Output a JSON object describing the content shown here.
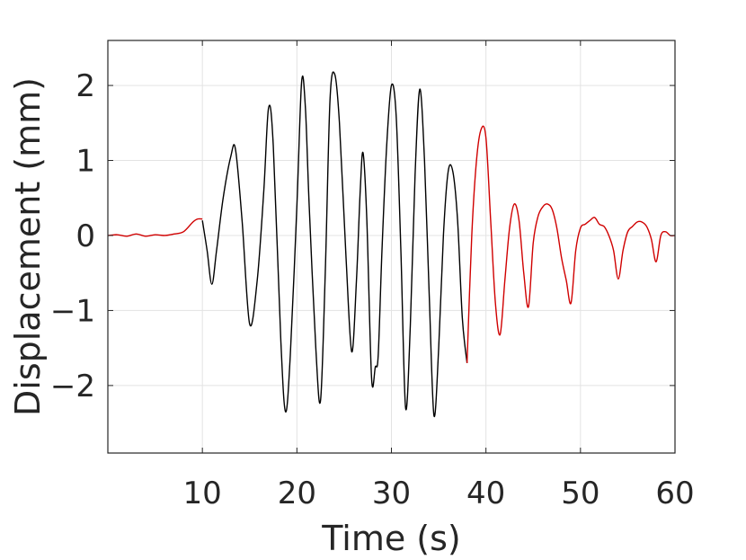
{
  "chart_data": {
    "type": "line",
    "title": "",
    "xlabel": "Time (s)",
    "ylabel": "Displacement (mm)",
    "xlim": [
      0,
      60
    ],
    "ylim": [
      -2.9,
      2.6
    ],
    "xticks": [
      10,
      20,
      30,
      40,
      50,
      60
    ],
    "xtick_labels": [
      "10",
      "20",
      "30",
      "40",
      "50",
      "60"
    ],
    "yticks": [
      -2,
      -1,
      0,
      1,
      2
    ],
    "ytick_labels": [
      "−2",
      "−1",
      "0",
      "1",
      "2"
    ],
    "grid": true,
    "legend": "none",
    "colors": {
      "segment_a": "#d00000",
      "segment_b": "#000000",
      "grid": "#e3e3e3",
      "axis": "#262626"
    },
    "series": [
      {
        "color": "#d00000",
        "x": [
          0,
          1,
          2,
          3,
          4,
          5,
          6,
          7,
          8,
          9,
          9.5,
          10
        ],
        "y": [
          0,
          0.01,
          -0.01,
          0.02,
          -0.01,
          0.01,
          0.0,
          0.02,
          0.05,
          0.18,
          0.22,
          0.22
        ]
      },
      {
        "color": "#000000",
        "x": [
          10,
          10.5,
          11.0,
          11.5,
          12.2,
          13.0,
          13.5,
          14.2,
          15.0,
          15.8,
          16.5,
          17.0,
          17.5,
          18.3,
          18.8,
          19.3,
          20.0,
          20.5,
          20.9,
          21.3,
          22.0,
          22.5,
          23.0,
          23.5,
          24.0,
          24.5,
          25.2,
          25.8,
          26.3,
          26.7,
          27.0,
          27.4,
          27.9,
          28.3,
          28.6,
          29.0,
          29.5,
          30.0,
          30.5,
          31.0,
          31.5,
          32.0,
          32.5,
          33.0,
          33.5,
          34.0,
          34.5,
          35.0,
          35.5,
          36.0,
          36.5,
          37.0,
          37.5,
          38.0
        ],
        "y": [
          0.2,
          -0.2,
          -0.65,
          -0.2,
          0.5,
          1.05,
          1.15,
          0.2,
          -1.18,
          -0.6,
          0.6,
          1.7,
          1.2,
          -1.4,
          -2.35,
          -1.6,
          0.4,
          2.05,
          1.7,
          0.4,
          -1.5,
          -2.2,
          -0.5,
          1.8,
          2.15,
          1.5,
          -0.3,
          -1.55,
          -0.6,
          0.6,
          1.1,
          0.2,
          -1.9,
          -1.75,
          -1.6,
          -0.2,
          1.2,
          2.0,
          1.6,
          -0.2,
          -2.3,
          -1.2,
          0.8,
          1.95,
          1.0,
          -0.8,
          -2.4,
          -1.5,
          0.0,
          0.85,
          0.85,
          0.2,
          -1.1,
          -1.7
        ]
      },
      {
        "color": "#d00000",
        "x": [
          38.0,
          38.5,
          39.0,
          39.5,
          40.0,
          40.5,
          41.0,
          41.5,
          42.0,
          42.5,
          43.0,
          43.5,
          44.0,
          44.5,
          45.0,
          45.5,
          46.0,
          46.5,
          47.0,
          47.5,
          48.0,
          48.5,
          49.0,
          49.5,
          50.0,
          50.5,
          51.0,
          51.5,
          52.0,
          52.5,
          53.0,
          53.5,
          54.0,
          54.5,
          55.0,
          55.5,
          56.0,
          56.5,
          57.0,
          57.5,
          58.0,
          58.5,
          59.0,
          59.5,
          60.0
        ],
        "y": [
          -1.7,
          0.0,
          1.0,
          1.42,
          1.3,
          0.2,
          -0.9,
          -1.32,
          -0.6,
          0.1,
          0.42,
          0.2,
          -0.5,
          -0.95,
          -0.1,
          0.25,
          0.38,
          0.42,
          0.35,
          0.1,
          -0.3,
          -0.6,
          -0.9,
          -0.2,
          0.1,
          0.15,
          0.2,
          0.24,
          0.15,
          0.12,
          0.0,
          -0.2,
          -0.58,
          -0.2,
          0.05,
          0.12,
          0.18,
          0.18,
          0.12,
          -0.05,
          -0.35,
          0.0,
          0.05,
          0.0,
          0.0
        ]
      }
    ]
  }
}
